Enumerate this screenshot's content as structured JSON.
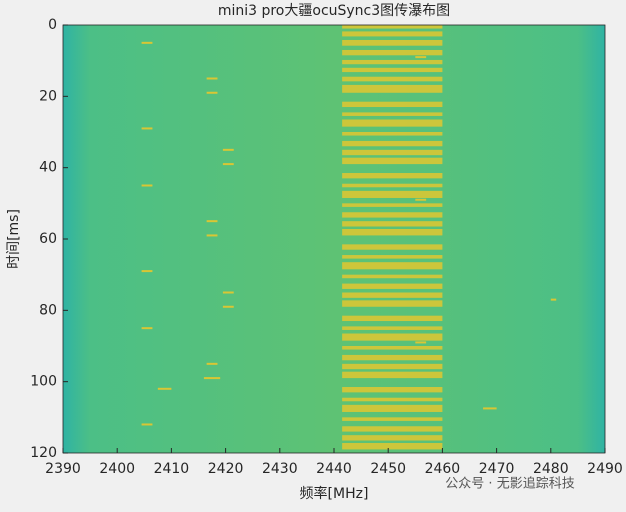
{
  "chart_data": {
    "type": "waterfall",
    "title": "mini3 pro大疆ocuSync3图传瀑布图",
    "x_label": "频率[MHz]",
    "y_label": "时间[ms]",
    "annotation": "公众号 · 无影追踪科技",
    "xlim": [
      2390,
      2490
    ],
    "ylim": [
      0,
      120
    ],
    "y_reversed": true,
    "xticks": [
      2390,
      2400,
      2410,
      2420,
      2430,
      2440,
      2450,
      2460,
      2470,
      2480,
      2490
    ],
    "yticks": [
      0,
      20,
      40,
      60,
      80,
      100,
      120
    ],
    "burst_color": "#d9c634",
    "band": {
      "freq": [
        2441.5,
        2460
      ],
      "times": [
        [
          0,
          1
        ],
        [
          1.8,
          3.2
        ],
        [
          4.2,
          5.8
        ],
        [
          7,
          8.5
        ],
        [
          9.8,
          11
        ],
        [
          12,
          13.2
        ],
        [
          14.5,
          15.8
        ],
        [
          16.8,
          19
        ],
        [
          21.5,
          23
        ],
        [
          24.5,
          25.5
        ],
        [
          26.5,
          28.5
        ],
        [
          30,
          31
        ],
        [
          32.5,
          34
        ],
        [
          35,
          36.5
        ],
        [
          37.2,
          39
        ],
        [
          41.5,
          43
        ],
        [
          44.5,
          45.5
        ],
        [
          46.5,
          48.5
        ],
        [
          50,
          51
        ],
        [
          52.5,
          54
        ],
        [
          55,
          56.5
        ],
        [
          57.2,
          59
        ],
        [
          61.5,
          63
        ],
        [
          64.5,
          65.5
        ],
        [
          66.5,
          68.5
        ],
        [
          70,
          71
        ],
        [
          72.5,
          74
        ],
        [
          75,
          76.5
        ],
        [
          77.2,
          79
        ],
        [
          81.5,
          83
        ],
        [
          84.5,
          85.5
        ],
        [
          86.5,
          88.5
        ],
        [
          90,
          91
        ],
        [
          92.5,
          94
        ],
        [
          95,
          96.5
        ],
        [
          97.2,
          99
        ],
        [
          101.5,
          103
        ],
        [
          104.5,
          105.5
        ],
        [
          106.5,
          108.5
        ],
        [
          110,
          111
        ],
        [
          112.5,
          114
        ],
        [
          115,
          116.5
        ],
        [
          117.2,
          119
        ]
      ]
    },
    "pulses": [
      {
        "freq": [
          2404.5,
          2406.5
        ],
        "time": 5
      },
      {
        "freq": [
          2404.5,
          2406.5
        ],
        "time": 29
      },
      {
        "freq": [
          2404.5,
          2406.5
        ],
        "time": 45
      },
      {
        "freq": [
          2404.5,
          2406.5
        ],
        "time": 69
      },
      {
        "freq": [
          2404.5,
          2406.5
        ],
        "time": 85
      },
      {
        "freq": [
          2404.5,
          2406.5
        ],
        "time": 112
      },
      {
        "freq": [
          2416.5,
          2418.5
        ],
        "time": 15
      },
      {
        "freq": [
          2416.5,
          2418.5
        ],
        "time": 19
      },
      {
        "freq": [
          2416.5,
          2418.5
        ],
        "time": 55
      },
      {
        "freq": [
          2416.5,
          2418.5
        ],
        "time": 59
      },
      {
        "freq": [
          2416.5,
          2418.5
        ],
        "time": 95
      },
      {
        "freq": [
          2416,
          2419
        ],
        "time": 99
      },
      {
        "freq": [
          2419.5,
          2421.5
        ],
        "time": 35
      },
      {
        "freq": [
          2419.5,
          2421.5
        ],
        "time": 39
      },
      {
        "freq": [
          2419.5,
          2421.5
        ],
        "time": 75
      },
      {
        "freq": [
          2419.5,
          2421.5
        ],
        "time": 79
      },
      {
        "freq": [
          2407.5,
          2410
        ],
        "time": 102
      },
      {
        "freq": [
          2467.5,
          2470
        ],
        "time": 107.5
      },
      {
        "freq": [
          2480,
          2481
        ],
        "time": 77
      },
      {
        "freq": [
          2455,
          2457
        ],
        "time": 9
      },
      {
        "freq": [
          2455,
          2457
        ],
        "time": 49
      },
      {
        "freq": [
          2455,
          2457
        ],
        "time": 89
      }
    ]
  }
}
